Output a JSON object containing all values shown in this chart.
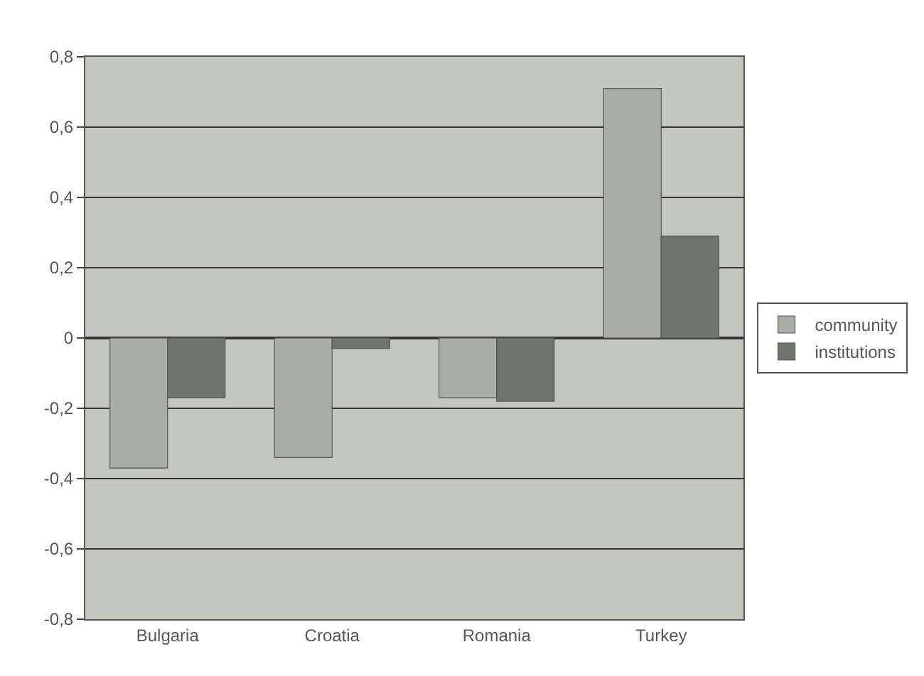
{
  "chart_data": {
    "type": "bar",
    "categories": [
      "Bulgaria",
      "Croatia",
      "Romania",
      "Turkey"
    ],
    "series": [
      {
        "name": "community",
        "color": "#a9ada5",
        "values": [
          -0.37,
          -0.34,
          -0.17,
          0.71
        ]
      },
      {
        "name": "institutions",
        "color": "#6f756d",
        "values": [
          -0.17,
          -0.03,
          -0.18,
          0.29
        ]
      }
    ],
    "ylim": [
      -0.8,
      0.8
    ],
    "yticks": [
      {
        "value": -0.8,
        "label": "-0,8"
      },
      {
        "value": -0.6,
        "label": "-0,6"
      },
      {
        "value": -0.4,
        "label": "-0,4"
      },
      {
        "value": -0.2,
        "label": "-0,2"
      },
      0,
      {
        "value": 0.2,
        "label": "0,2"
      },
      {
        "value": 0.4,
        "label": "0,4"
      },
      {
        "value": 0.6,
        "label": "0,6"
      },
      {
        "value": 0.8,
        "label": "0,8"
      }
    ],
    "grid": "y",
    "legend": "right"
  }
}
